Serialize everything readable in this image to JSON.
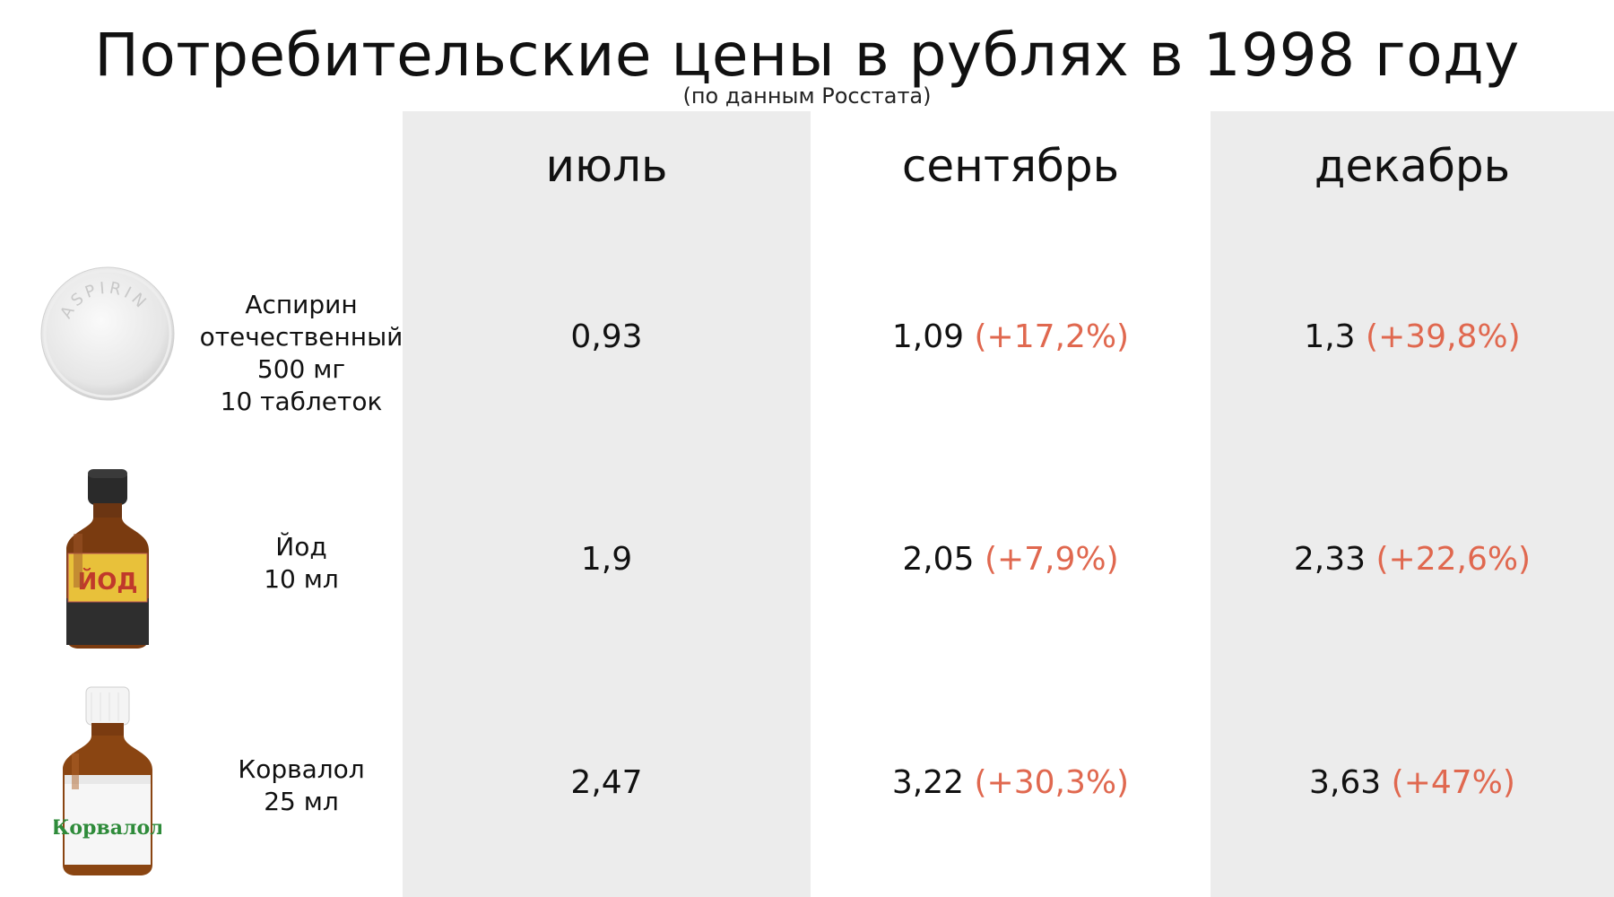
{
  "title": "Потребительские цены в рублях в 1998 году",
  "subtitle": "(по данным Росстата)",
  "months": [
    "июль",
    "сентябрь",
    "декабрь"
  ],
  "colors": {
    "accent": "#e0684f",
    "column_shade": "#ececec",
    "text": "#111111"
  },
  "rows": [
    {
      "label_lines": [
        "Аспирин",
        "отечественный",
        "500 мг",
        "10 таблеток"
      ],
      "image": {
        "icon": "aspirin-tablet-icon",
        "text": "ASPIRIN"
      },
      "prices": [
        {
          "value": "0,93",
          "change": ""
        },
        {
          "value": "1,09",
          "change": "(+17,2%)"
        },
        {
          "value": "1,3",
          "change": "(+39,8%)"
        }
      ]
    },
    {
      "label_lines": [
        "Йод",
        "10 мл"
      ],
      "image": {
        "icon": "iodine-bottle-icon",
        "text": "ЙОД"
      },
      "prices": [
        {
          "value": "1,9",
          "change": ""
        },
        {
          "value": "2,05",
          "change": "(+7,9%)"
        },
        {
          "value": "2,33",
          "change": "(+22,6%)"
        }
      ]
    },
    {
      "label_lines": [
        "Корвалол",
        "25 мл"
      ],
      "image": {
        "icon": "corvalol-bottle-icon",
        "text": "Корвалол"
      },
      "prices": [
        {
          "value": "2,47",
          "change": ""
        },
        {
          "value": "3,22",
          "change": "(+30,3%)"
        },
        {
          "value": "3,63",
          "change": "(+47%)"
        }
      ]
    }
  ]
}
